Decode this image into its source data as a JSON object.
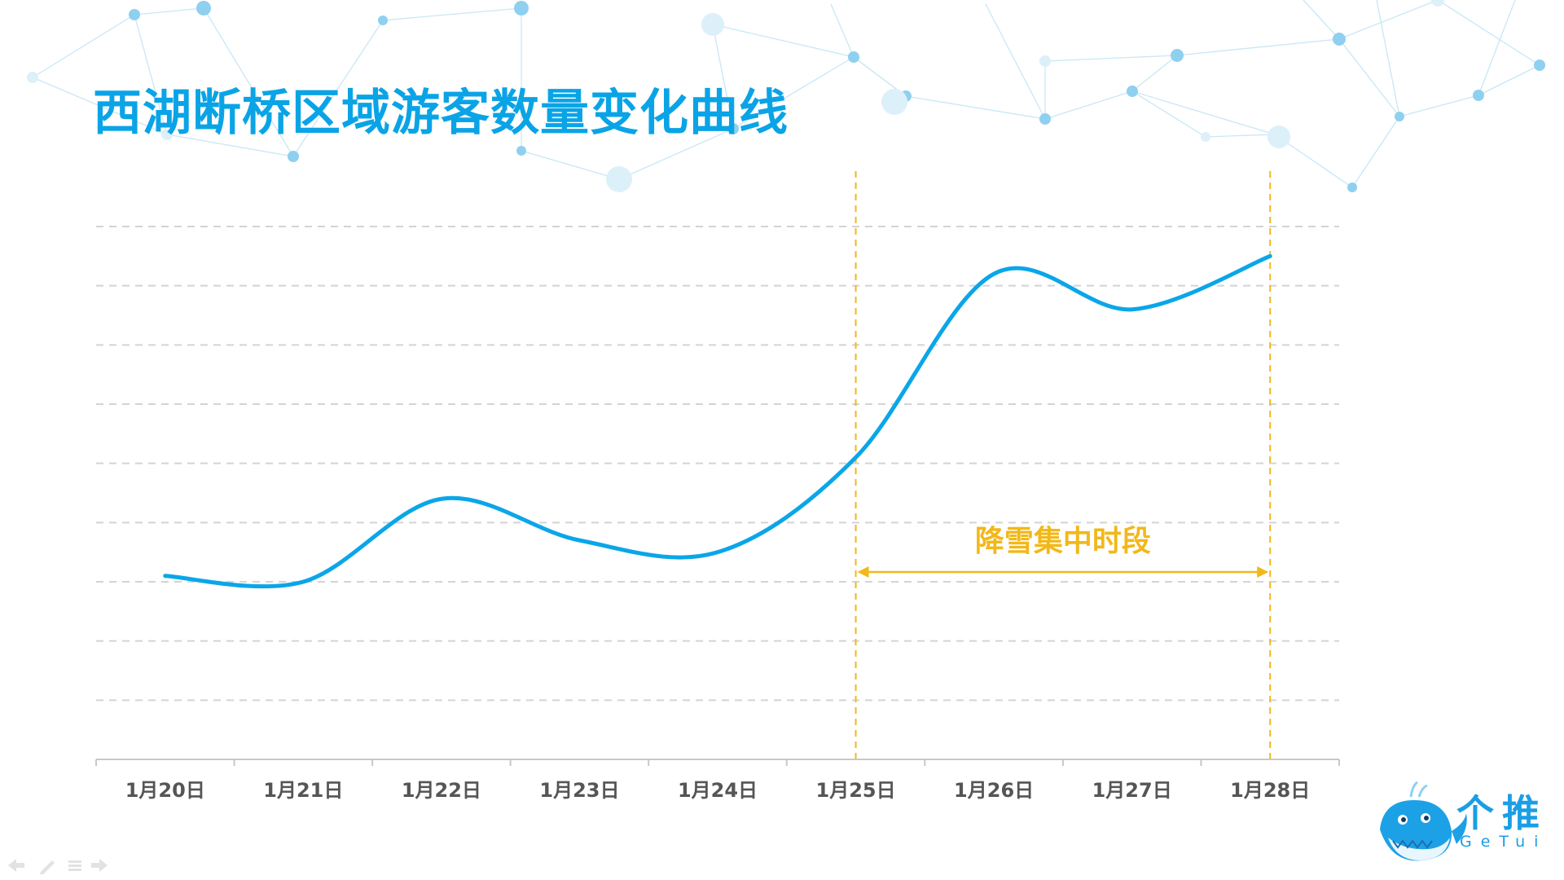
{
  "title": "西湖断桥区域游客数量变化曲线",
  "colors": {
    "title": "#0aa4e6",
    "line": "#0aa6e8",
    "highlight": "#f2b81a",
    "grid": "#d4d4d4",
    "axis_text": "#555555"
  },
  "chart_data": {
    "type": "line",
    "categories": [
      "1月20日",
      "1月21日",
      "1月22日",
      "1月23日",
      "1月24日",
      "1月25日",
      "1月26日",
      "1月27日",
      "1月28日"
    ],
    "x": [
      "1月20日",
      "1月21日",
      "1月22日",
      "1月23日",
      "1月24日",
      "1月25日",
      "1月26日",
      "1月27日",
      "1月28日"
    ],
    "values": [
      3.1,
      3.0,
      4.4,
      3.7,
      3.5,
      5.1,
      8.2,
      7.6,
      8.5
    ],
    "ylim": [
      0,
      9
    ],
    "yaxis_labels_shown": false,
    "grid": "horizontal dashed",
    "smooth": true,
    "title": "西湖断桥区域游客数量变化曲线",
    "annotations": [
      {
        "type": "span",
        "label": "降雪集中时段",
        "from": "1月25日",
        "to": "1月28日"
      }
    ]
  },
  "logo": {
    "name_cn": "个推",
    "name_en": "GeTui",
    "icon": "whale-mascot-icon"
  },
  "slide_controls": [
    "prev-arrow-icon",
    "pen-icon",
    "menu-icon",
    "next-arrow-icon"
  ]
}
